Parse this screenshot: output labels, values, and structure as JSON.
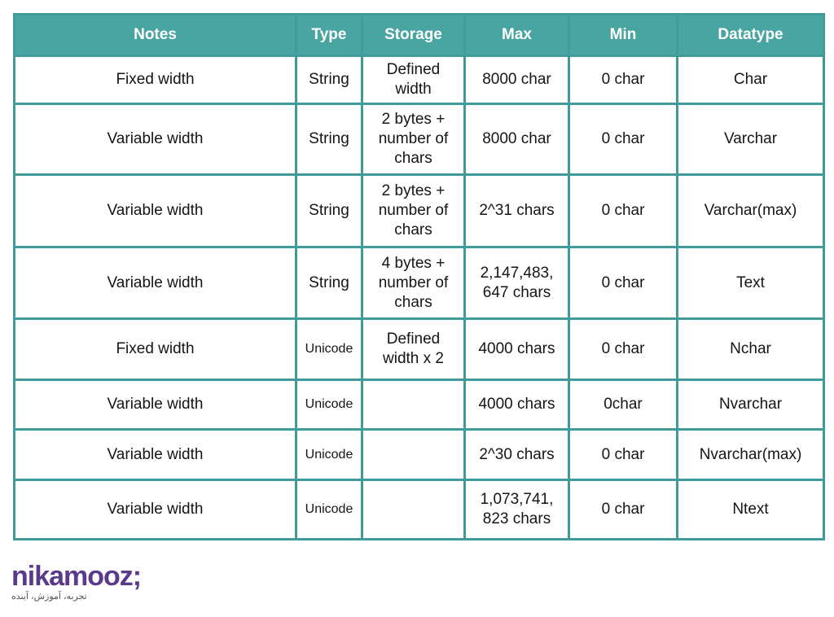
{
  "table": {
    "headers": [
      "Notes",
      "Type",
      "Storage",
      "Max",
      "Min",
      "Datatype"
    ],
    "rows": [
      [
        "Fixed width",
        "String",
        "Defined\nwidth",
        "8000 char",
        "0 char",
        "Char"
      ],
      [
        "Variable width",
        "String",
        "2 bytes +\nnumber of\nchars",
        "8000 char",
        "0 char",
        "Varchar"
      ],
      [
        "Variable width",
        "String",
        "2 bytes +\nnumber of\nchars",
        "2^31 chars",
        "0 char",
        "Varchar(max)"
      ],
      [
        "Variable width",
        "String",
        "4 bytes +\nnumber of\nchars",
        "2,147,483,\n647 chars",
        "0 char",
        "Text"
      ],
      [
        "Fixed width",
        "Unicode",
        "Defined\nwidth x 2",
        "4000 chars",
        "0 char",
        "Nchar"
      ],
      [
        "Variable width",
        "Unicode",
        null,
        "4000 chars",
        "0char",
        "Nvarchar"
      ],
      [
        "Variable width",
        "Unicode",
        null,
        "2^30 chars",
        "0 char",
        "Nvarchar(max)"
      ],
      [
        "Variable width",
        "Unicode",
        null,
        "1,073,741,\n823 chars",
        "0 char",
        "Ntext"
      ]
    ]
  },
  "logo": {
    "name": "nikamooz;",
    "tagline": "تجربه، آموزش، آینده"
  }
}
